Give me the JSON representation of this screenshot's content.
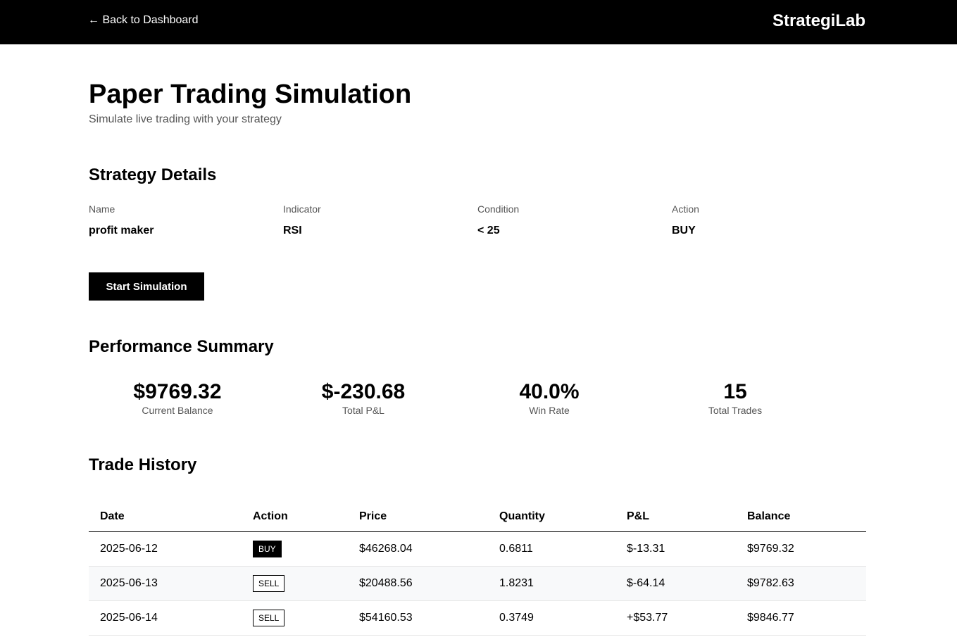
{
  "header": {
    "back_label": "← Back to Dashboard",
    "brand": "StrategiLab"
  },
  "page": {
    "title": "Paper Trading Simulation",
    "subtitle": "Simulate live trading with your strategy"
  },
  "strategy": {
    "section_title": "Strategy Details",
    "fields": [
      {
        "label": "Name",
        "value": "profit maker"
      },
      {
        "label": "Indicator",
        "value": "RSI"
      },
      {
        "label": "Condition",
        "value": "< 25"
      },
      {
        "label": "Action",
        "value": "BUY"
      }
    ],
    "start_button_label": "Start Simulation"
  },
  "performance": {
    "section_title": "Performance Summary",
    "stats": [
      {
        "value": "$9769.32",
        "label": "Current Balance"
      },
      {
        "value": "$-230.68",
        "label": "Total P&L"
      },
      {
        "value": "40.0%",
        "label": "Win Rate"
      },
      {
        "value": "15",
        "label": "Total Trades"
      }
    ]
  },
  "trades": {
    "section_title": "Trade History",
    "columns": [
      "Date",
      "Action",
      "Price",
      "Quantity",
      "P&L",
      "Balance"
    ],
    "rows": [
      {
        "date": "2025-06-12",
        "action": "BUY",
        "price": "$46268.04",
        "quantity": "0.6811",
        "pnl": "$-13.31",
        "balance": "$9769.32"
      },
      {
        "date": "2025-06-13",
        "action": "SELL",
        "price": "$20488.56",
        "quantity": "1.8231",
        "pnl": "$-64.14",
        "balance": "$9782.63"
      },
      {
        "date": "2025-06-14",
        "action": "SELL",
        "price": "$54160.53",
        "quantity": "0.3749",
        "pnl": "+$53.77",
        "balance": "$9846.77"
      }
    ]
  }
}
